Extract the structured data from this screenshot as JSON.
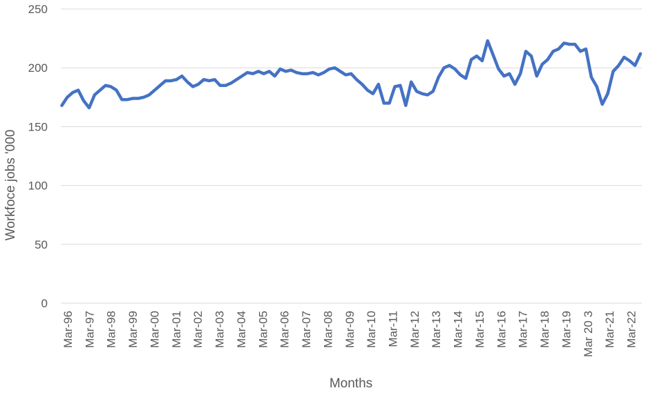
{
  "chart_data": {
    "type": "line",
    "title": "",
    "xlabel": "Months",
    "ylabel": "Workfoce jobs '000",
    "ylim": [
      0,
      250
    ],
    "yticks": [
      0,
      50,
      100,
      150,
      200,
      250
    ],
    "grid": true,
    "legend": "none",
    "x_tick_labels": [
      "Mar-96",
      "Mar-97",
      "Mar-98",
      "Mar-99",
      "Mar-00",
      "Mar-01",
      "Mar-02",
      "Mar-03",
      "Mar-04",
      "Mar-05",
      "Mar-06",
      "Mar-07",
      "Mar-08",
      "Mar-09",
      "Mar-10",
      "Mar-11",
      "Mar-12",
      "Mar-13",
      "Mar-14",
      "Mar-15",
      "Mar-16",
      "Mar-17",
      "Mar-18",
      "Mar-19",
      "Mar 20 3",
      "Mar-21",
      "Mar-22"
    ],
    "series": [
      {
        "color": "#4472c4",
        "values": [
          168,
          175,
          179,
          181,
          172,
          166,
          177,
          181,
          185,
          184,
          181,
          173,
          173,
          174,
          174,
          175,
          177,
          181,
          185,
          189,
          189,
          190,
          193,
          188,
          184,
          186,
          190,
          189,
          190,
          185,
          185,
          187,
          190,
          193,
          196,
          195,
          197,
          195,
          197,
          193,
          199,
          197,
          198,
          196,
          195,
          195,
          196,
          194,
          196,
          199,
          200,
          197,
          194,
          195,
          190,
          186,
          181,
          178,
          186,
          170,
          170,
          184,
          185,
          168,
          188,
          180,
          178,
          177,
          180,
          192,
          200,
          202,
          199,
          194,
          191,
          207,
          210,
          206,
          223,
          211,
          199,
          193,
          195,
          186,
          195,
          214,
          210,
          193,
          203,
          207,
          214,
          216,
          221,
          220,
          220,
          214,
          216,
          192,
          184,
          169,
          178,
          197,
          202,
          209,
          206,
          202,
          212
        ]
      }
    ]
  }
}
